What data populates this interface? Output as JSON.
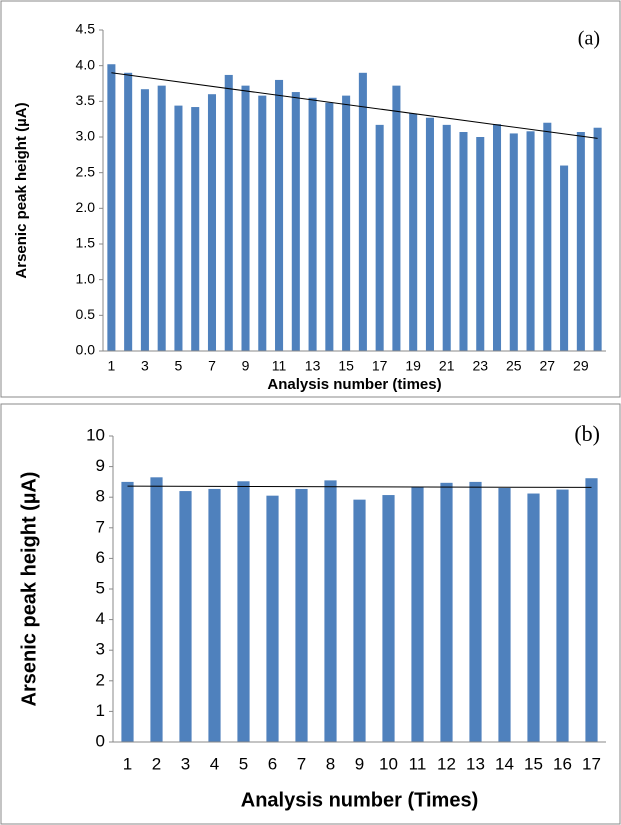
{
  "chart_data": [
    {
      "type": "bar",
      "panel_label": "(a)",
      "x_label": "Analysis number (times)",
      "y_label": "Arsenic peak height (µA)",
      "categories": [
        "1",
        null,
        "3",
        null,
        "5",
        null,
        "7",
        null,
        "9",
        null,
        "11",
        null,
        "13",
        null,
        "15",
        null,
        "17",
        null,
        "19",
        null,
        "21",
        null,
        "23",
        null,
        "25",
        null,
        "27",
        null,
        "29",
        null
      ],
      "values": [
        4.02,
        3.9,
        3.67,
        3.72,
        3.44,
        3.42,
        3.6,
        3.87,
        3.72,
        3.58,
        3.8,
        3.63,
        3.55,
        3.48,
        3.58,
        3.9,
        3.17,
        3.72,
        3.33,
        3.27,
        3.17,
        3.07,
        3.0,
        3.18,
        3.05,
        3.08,
        3.2,
        2.6,
        3.07,
        3.13
      ],
      "trend_line": [
        3.9,
        2.98
      ],
      "color": "#4f81bd",
      "ylim": [
        0,
        4.5
      ],
      "yticks": [
        {
          "value": 0,
          "label": "0.0"
        },
        0.5,
        {
          "value": 1,
          "label": "1.0"
        },
        1.5,
        {
          "value": 2,
          "label": "2.0"
        },
        2.5,
        {
          "value": 3,
          "label": "3.0"
        },
        3.5,
        {
          "value": 4,
          "label": "4.0"
        },
        4.5
      ]
    },
    {
      "type": "bar",
      "panel_label": "(b)",
      "x_label": "Analysis number (Times)",
      "y_label": "Arsenic peak height (µA)",
      "categories": [
        "1",
        "2",
        "3",
        "4",
        "5",
        "6",
        "7",
        "8",
        "9",
        "10",
        "11",
        "12",
        "13",
        "14",
        "15",
        "16",
        "17"
      ],
      "values": [
        8.5,
        8.65,
        8.2,
        8.27,
        8.52,
        8.05,
        8.27,
        8.55,
        7.92,
        8.07,
        8.35,
        8.47,
        8.5,
        8.3,
        8.12,
        8.25,
        8.62
      ],
      "trend_line": [
        8.36,
        8.32
      ],
      "color": "#4f81bd",
      "ylim": [
        0,
        10
      ],
      "yticks": [
        0,
        1,
        2,
        3,
        4,
        5,
        6,
        7,
        8,
        9,
        10
      ]
    }
  ]
}
